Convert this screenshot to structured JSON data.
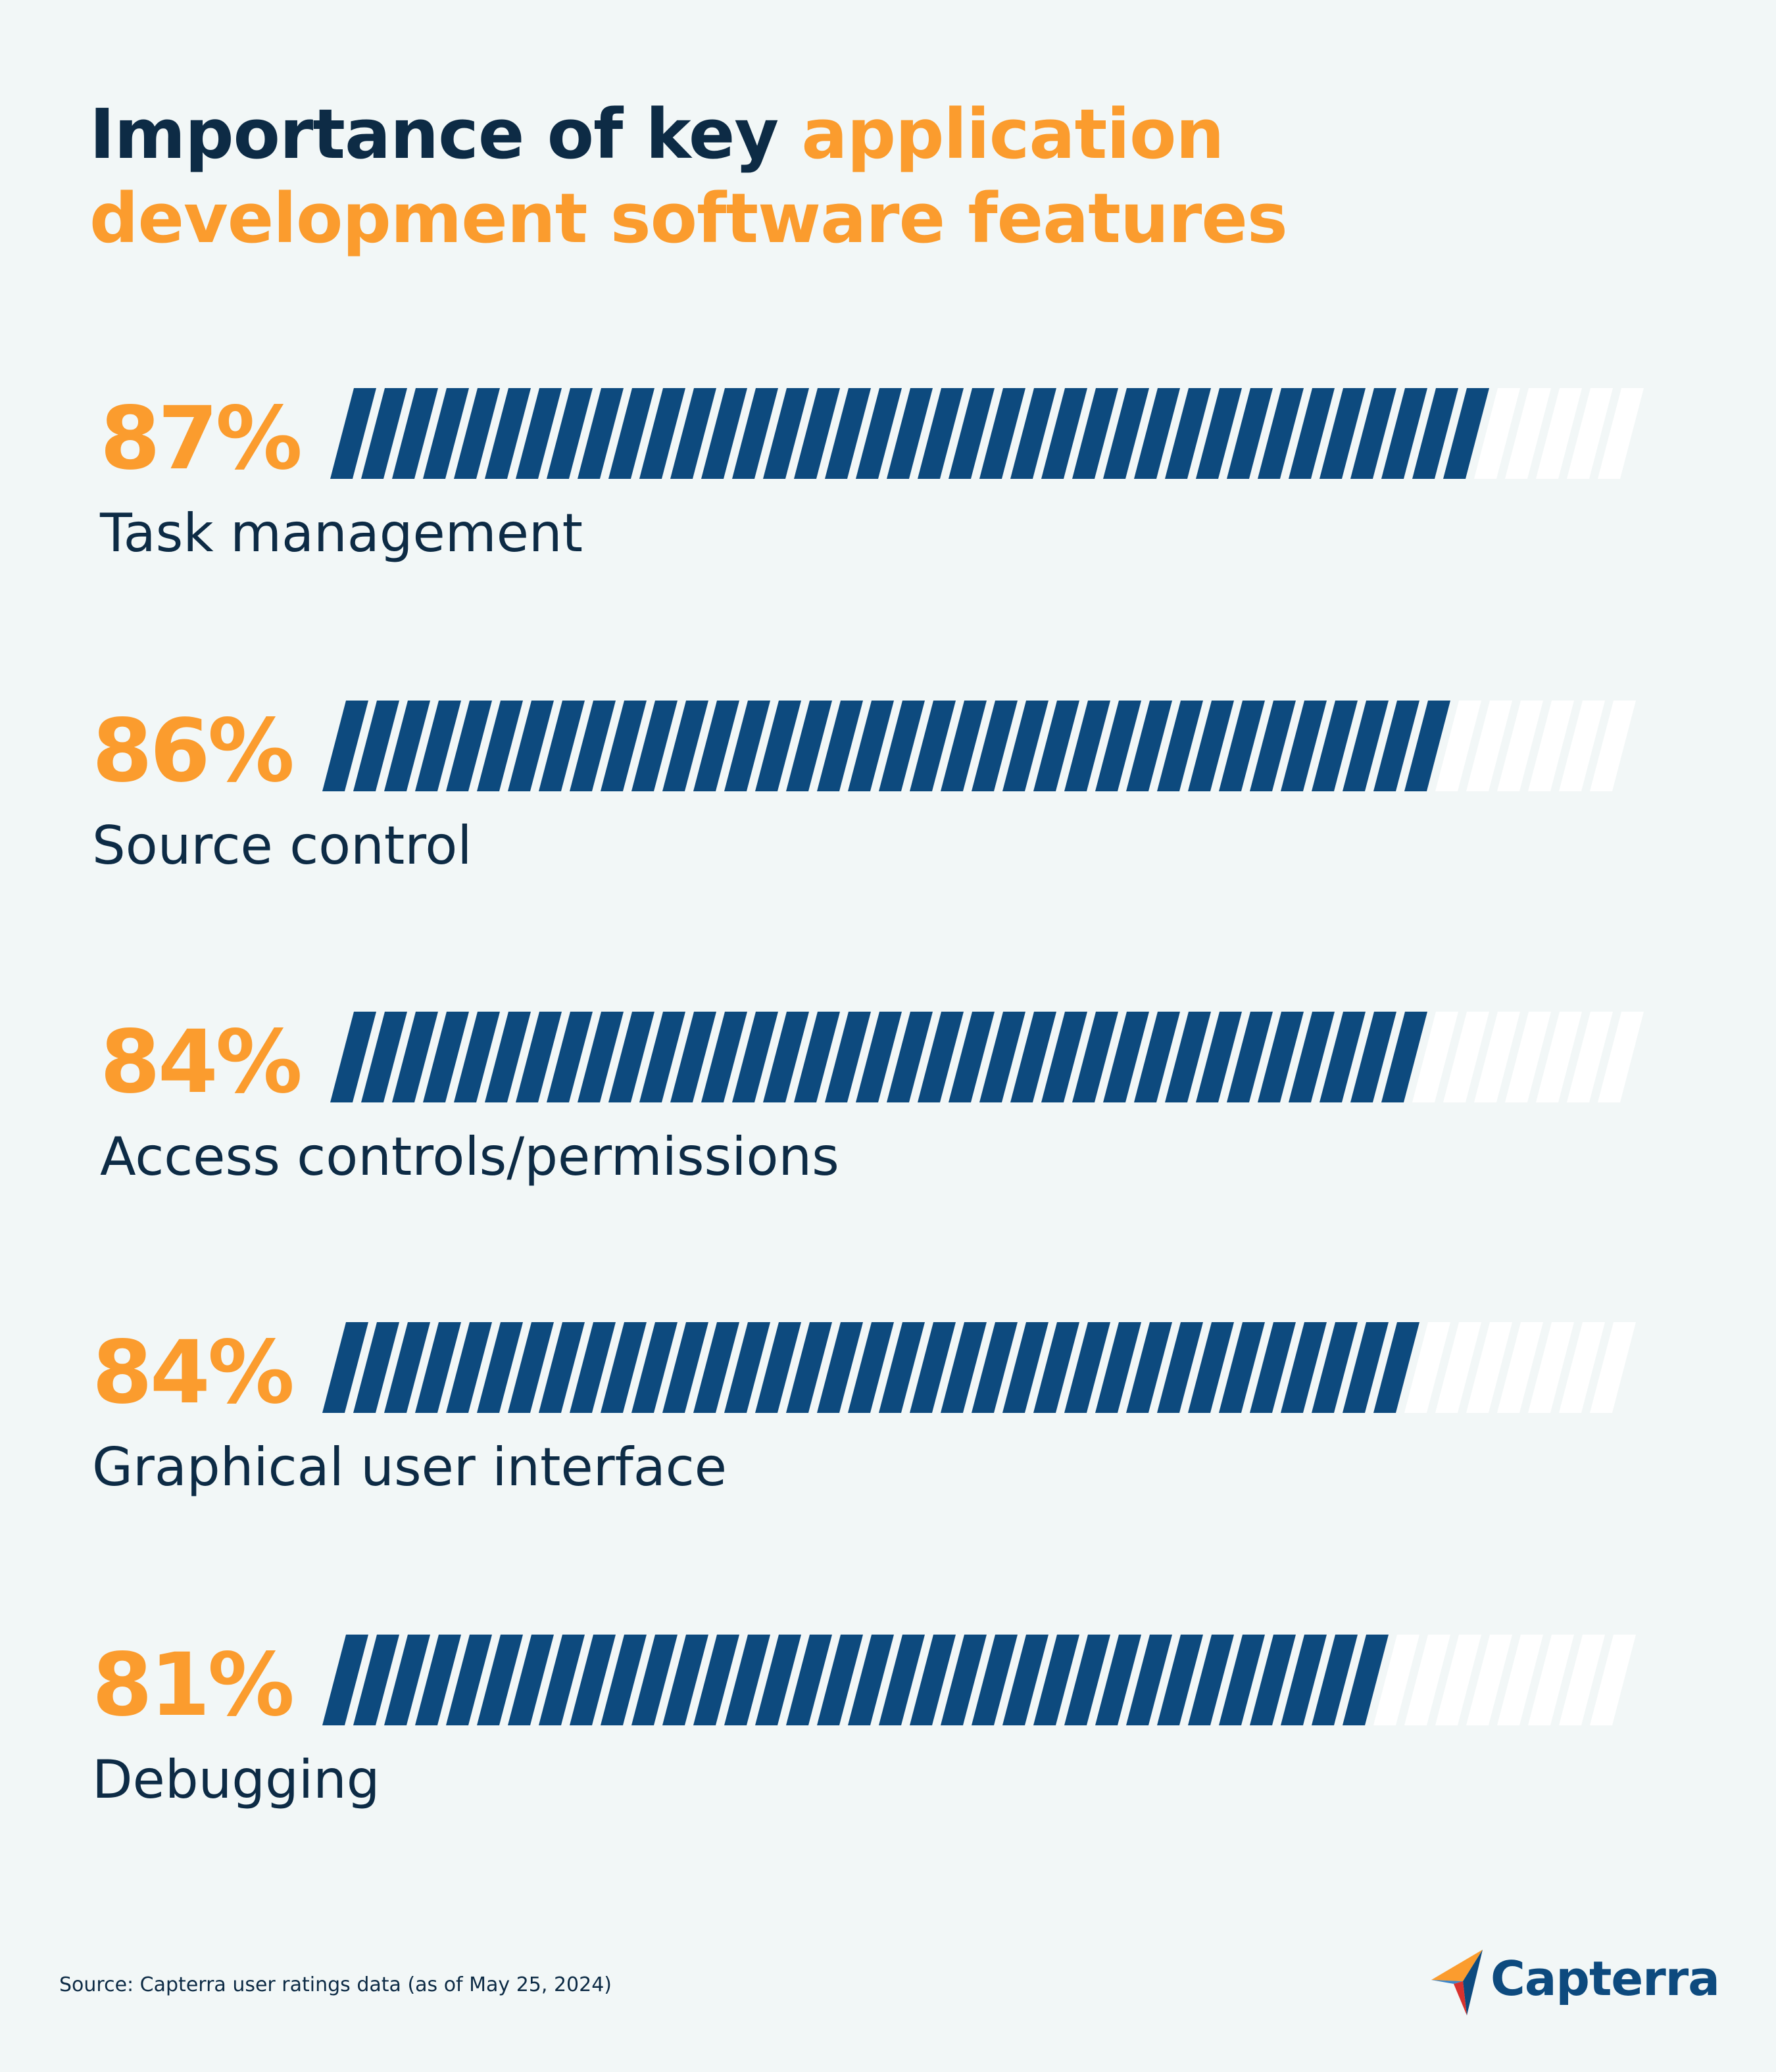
{
  "title": {
    "part1": "Importance of key ",
    "part2": "application development software features"
  },
  "chart_data": {
    "type": "bar",
    "orientation": "horizontal",
    "title": "Importance of key application development software features",
    "categories": [
      "Task management",
      "Source control",
      "Access controls/permissions",
      "Graphical user interface",
      "Debugging"
    ],
    "values": [
      87,
      86,
      84,
      84,
      81
    ],
    "value_labels": [
      "87%",
      "86%",
      "84%",
      "84%",
      "81%"
    ],
    "xlim": [
      0,
      100
    ],
    "colors": {
      "bar": "#0d4a7e",
      "track": "#ffffff",
      "value": "#fb9c2e",
      "label": "#0d2b45"
    }
  },
  "footer": {
    "source": "Source: Capterra user ratings data (as of May 25, 2024)"
  },
  "logo": {
    "text": "Capterra"
  }
}
